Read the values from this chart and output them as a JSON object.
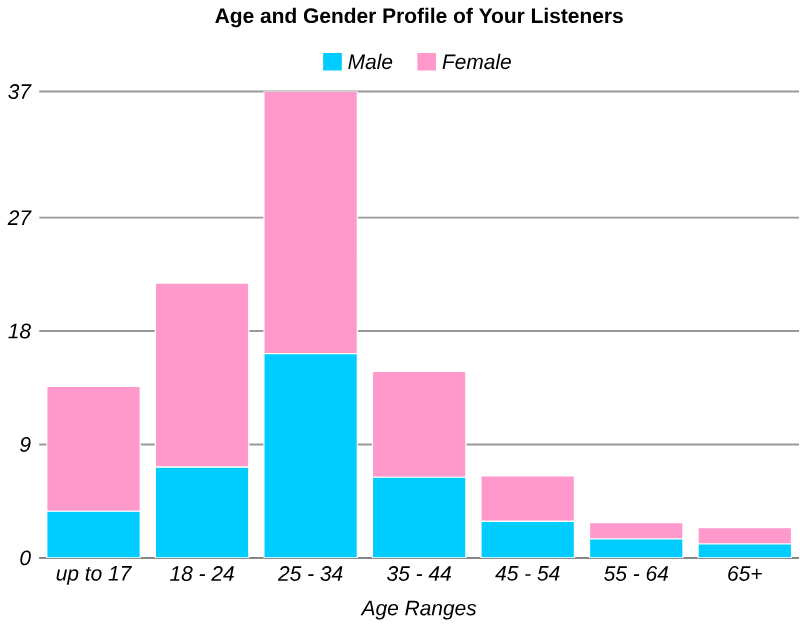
{
  "chart_data": {
    "type": "bar",
    "title": "Age and Gender Profile of Your Listeners",
    "xlabel": "Age Ranges",
    "categories": [
      "up to 17",
      "18 - 24",
      "25 - 34",
      "35 - 44",
      "45 - 54",
      "55 - 64",
      "65+"
    ],
    "stacked": true,
    "series": [
      {
        "name": "Male",
        "color": "#00ccff",
        "values": [
          3.7,
          7.2,
          16.2,
          6.4,
          2.9,
          1.5,
          1.1
        ]
      },
      {
        "name": "Female",
        "color": "#ff99cc",
        "values": [
          9.9,
          14.6,
          20.8,
          8.4,
          3.6,
          1.3,
          1.3
        ]
      }
    ],
    "ylim": [
      0,
      37
    ],
    "yticks": [
      0,
      9,
      18,
      27,
      37
    ],
    "grid": "y",
    "legend": "top"
  }
}
